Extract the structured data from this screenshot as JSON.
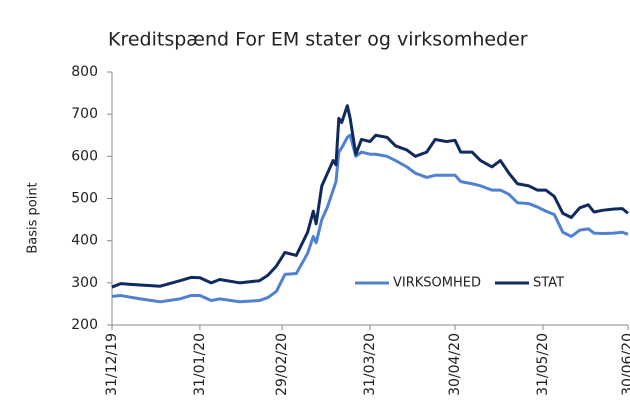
{
  "chart_data": {
    "type": "line",
    "title": "Kreditspænd For EM stater og virksomheder",
    "y_label": "Basis point",
    "x": [
      "2019-12-31",
      "2020-01-03",
      "2020-01-10",
      "2020-01-17",
      "2020-01-24",
      "2020-01-28",
      "2020-01-31",
      "2020-02-04",
      "2020-02-07",
      "2020-02-14",
      "2020-02-21",
      "2020-02-24",
      "2020-02-27",
      "2020-03-01",
      "2020-03-05",
      "2020-03-09",
      "2020-03-11",
      "2020-03-12",
      "2020-03-14",
      "2020-03-16",
      "2020-03-18",
      "2020-03-19",
      "2020-03-20",
      "2020-03-21",
      "2020-03-23",
      "2020-03-24",
      "2020-03-26",
      "2020-03-28",
      "2020-03-31",
      "2020-04-02",
      "2020-04-06",
      "2020-04-09",
      "2020-04-13",
      "2020-04-16",
      "2020-04-20",
      "2020-04-23",
      "2020-04-27",
      "2020-04-30",
      "2020-05-02",
      "2020-05-06",
      "2020-05-09",
      "2020-05-13",
      "2020-05-16",
      "2020-05-19",
      "2020-05-22",
      "2020-05-26",
      "2020-05-29",
      "2020-06-01",
      "2020-06-04",
      "2020-06-07",
      "2020-06-10",
      "2020-06-13",
      "2020-06-16",
      "2020-06-18",
      "2020-06-21",
      "2020-06-25",
      "2020-06-28",
      "2020-06-30"
    ],
    "series": [
      {
        "name": "VIRKSOMHED",
        "color": "#4f81d0",
        "values": [
          268,
          270,
          262,
          255,
          262,
          270,
          270,
          258,
          262,
          255,
          258,
          265,
          280,
          320,
          322,
          370,
          410,
          395,
          450,
          480,
          520,
          540,
          610,
          620,
          645,
          650,
          600,
          610,
          605,
          605,
          600,
          590,
          575,
          560,
          550,
          555,
          555,
          555,
          540,
          535,
          530,
          520,
          520,
          510,
          490,
          488,
          480,
          470,
          462,
          420,
          410,
          425,
          428,
          418,
          417,
          418,
          420,
          415
        ]
      },
      {
        "name": "STAT",
        "color": "#0e2a5e",
        "values": [
          290,
          298,
          295,
          292,
          305,
          313,
          312,
          300,
          308,
          300,
          305,
          318,
          340,
          372,
          365,
          420,
          470,
          440,
          530,
          560,
          590,
          580,
          690,
          680,
          720,
          690,
          605,
          640,
          635,
          650,
          645,
          625,
          615,
          600,
          610,
          640,
          635,
          638,
          610,
          610,
          590,
          575,
          590,
          560,
          535,
          530,
          520,
          520,
          505,
          465,
          455,
          478,
          485,
          468,
          472,
          475,
          476,
          465
        ]
      }
    ],
    "ylim": [
      200,
      800
    ],
    "yticks": [
      200,
      300,
      400,
      500,
      600,
      700,
      800
    ],
    "xlim": [
      "2019-12-31",
      "2020-06-30"
    ],
    "xticks": [
      {
        "value": "2019-12-31",
        "label": "31/12/19"
      },
      {
        "value": "2020-01-31",
        "label": "31/01/20"
      },
      {
        "value": "2020-02-29",
        "label": "29/02/20"
      },
      {
        "value": "2020-03-31",
        "label": "31/03/20"
      },
      {
        "value": "2020-04-30",
        "label": "30/04/20"
      },
      {
        "value": "2020-05-31",
        "label": "31/05/20"
      },
      {
        "value": "2020-06-30",
        "label": "30/06/20"
      }
    ],
    "legend": "center"
  }
}
